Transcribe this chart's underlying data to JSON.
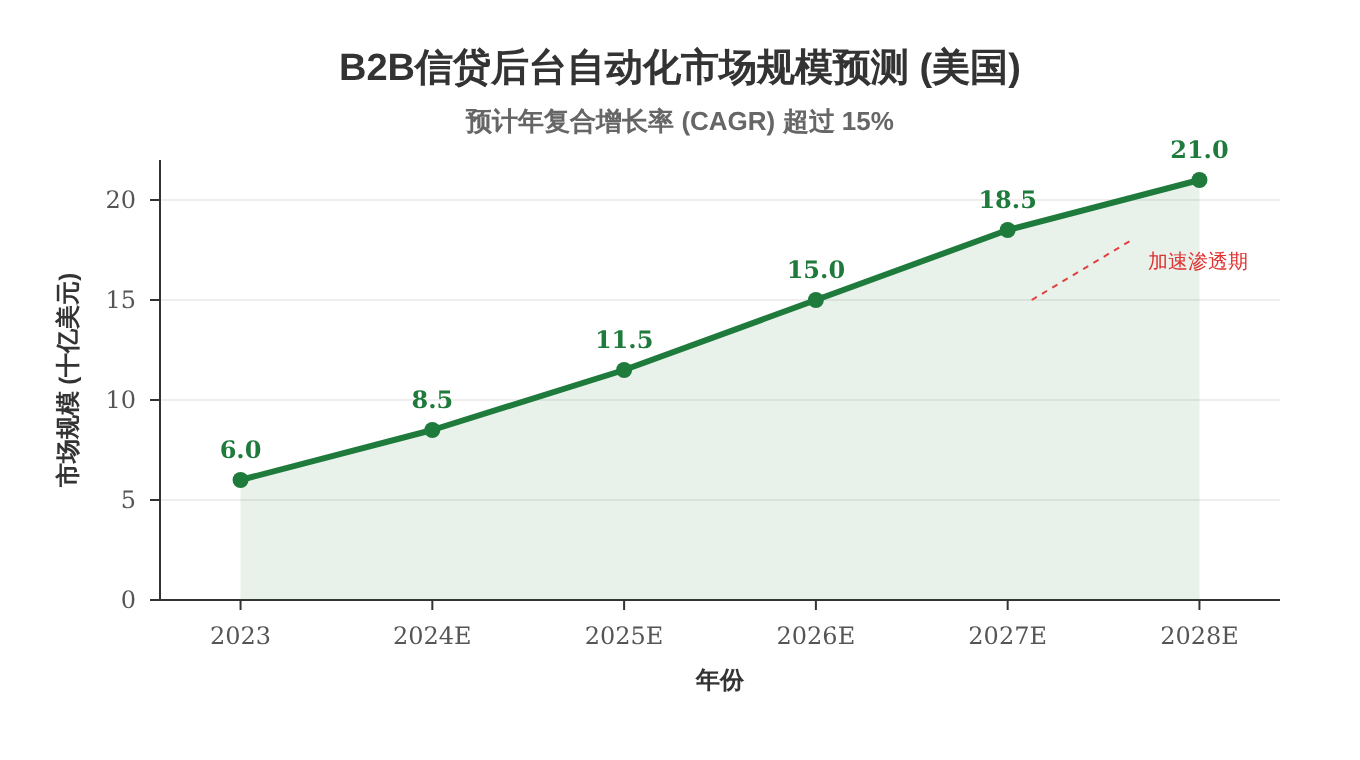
{
  "chart_data": {
    "type": "area",
    "title": "B2B信贷后台自动化市场规模预测 (美国)",
    "subtitle": "预计年复合增长率 (CAGR) 超过 15%",
    "xlabel": "年份",
    "ylabel": "市场规模 (十亿美元)",
    "categories": [
      "2023",
      "2024E",
      "2025E",
      "2026E",
      "2027E",
      "2028E"
    ],
    "series": [
      {
        "color": "#1e7b3c",
        "values": [
          6.0,
          8.5,
          11.5,
          15.0,
          18.5,
          21.0
        ],
        "value_labels": [
          "6.0",
          "8.5",
          "11.5",
          "15.0",
          "18.5",
          "21.0"
        ]
      }
    ],
    "ylim": [
      0,
      22
    ],
    "yticks": [
      0,
      5,
      10,
      15,
      20
    ],
    "grid": "y",
    "marker": "circle",
    "line_style": "solid",
    "annotations": [
      "加速渗透期"
    ]
  }
}
